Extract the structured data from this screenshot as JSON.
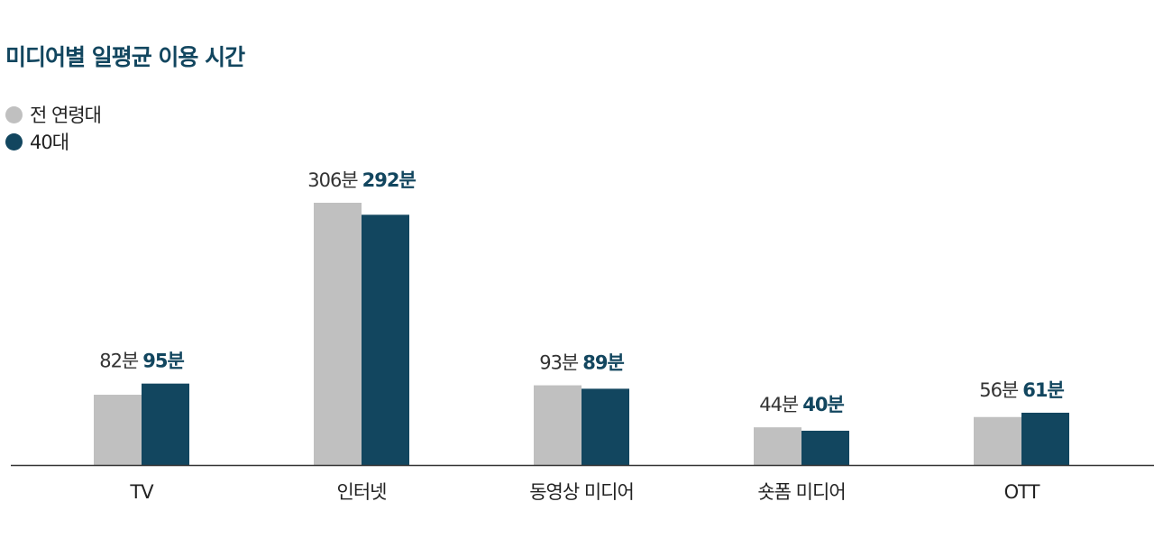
{
  "title": "미디어별 일평균 이용 시간",
  "colors": {
    "all_ages": "#c0c0c0",
    "forties": "#12465f",
    "axis": "#333333",
    "label": "#333333"
  },
  "unit": "분",
  "chart_data": {
    "type": "bar",
    "title": "미디어별 일평균 이용 시간",
    "categories": [
      "TV",
      "인터넷",
      "동영상 미디어",
      "숏폼 미디어",
      "OTT"
    ],
    "series": [
      {
        "name": "전 연령대",
        "values": [
          82,
          306,
          93,
          44,
          56
        ]
      },
      {
        "name": "40대",
        "values": [
          95,
          292,
          89,
          40,
          61
        ]
      }
    ],
    "ylim": [
      0,
      306
    ],
    "legend": "top-left",
    "grid": false
  }
}
